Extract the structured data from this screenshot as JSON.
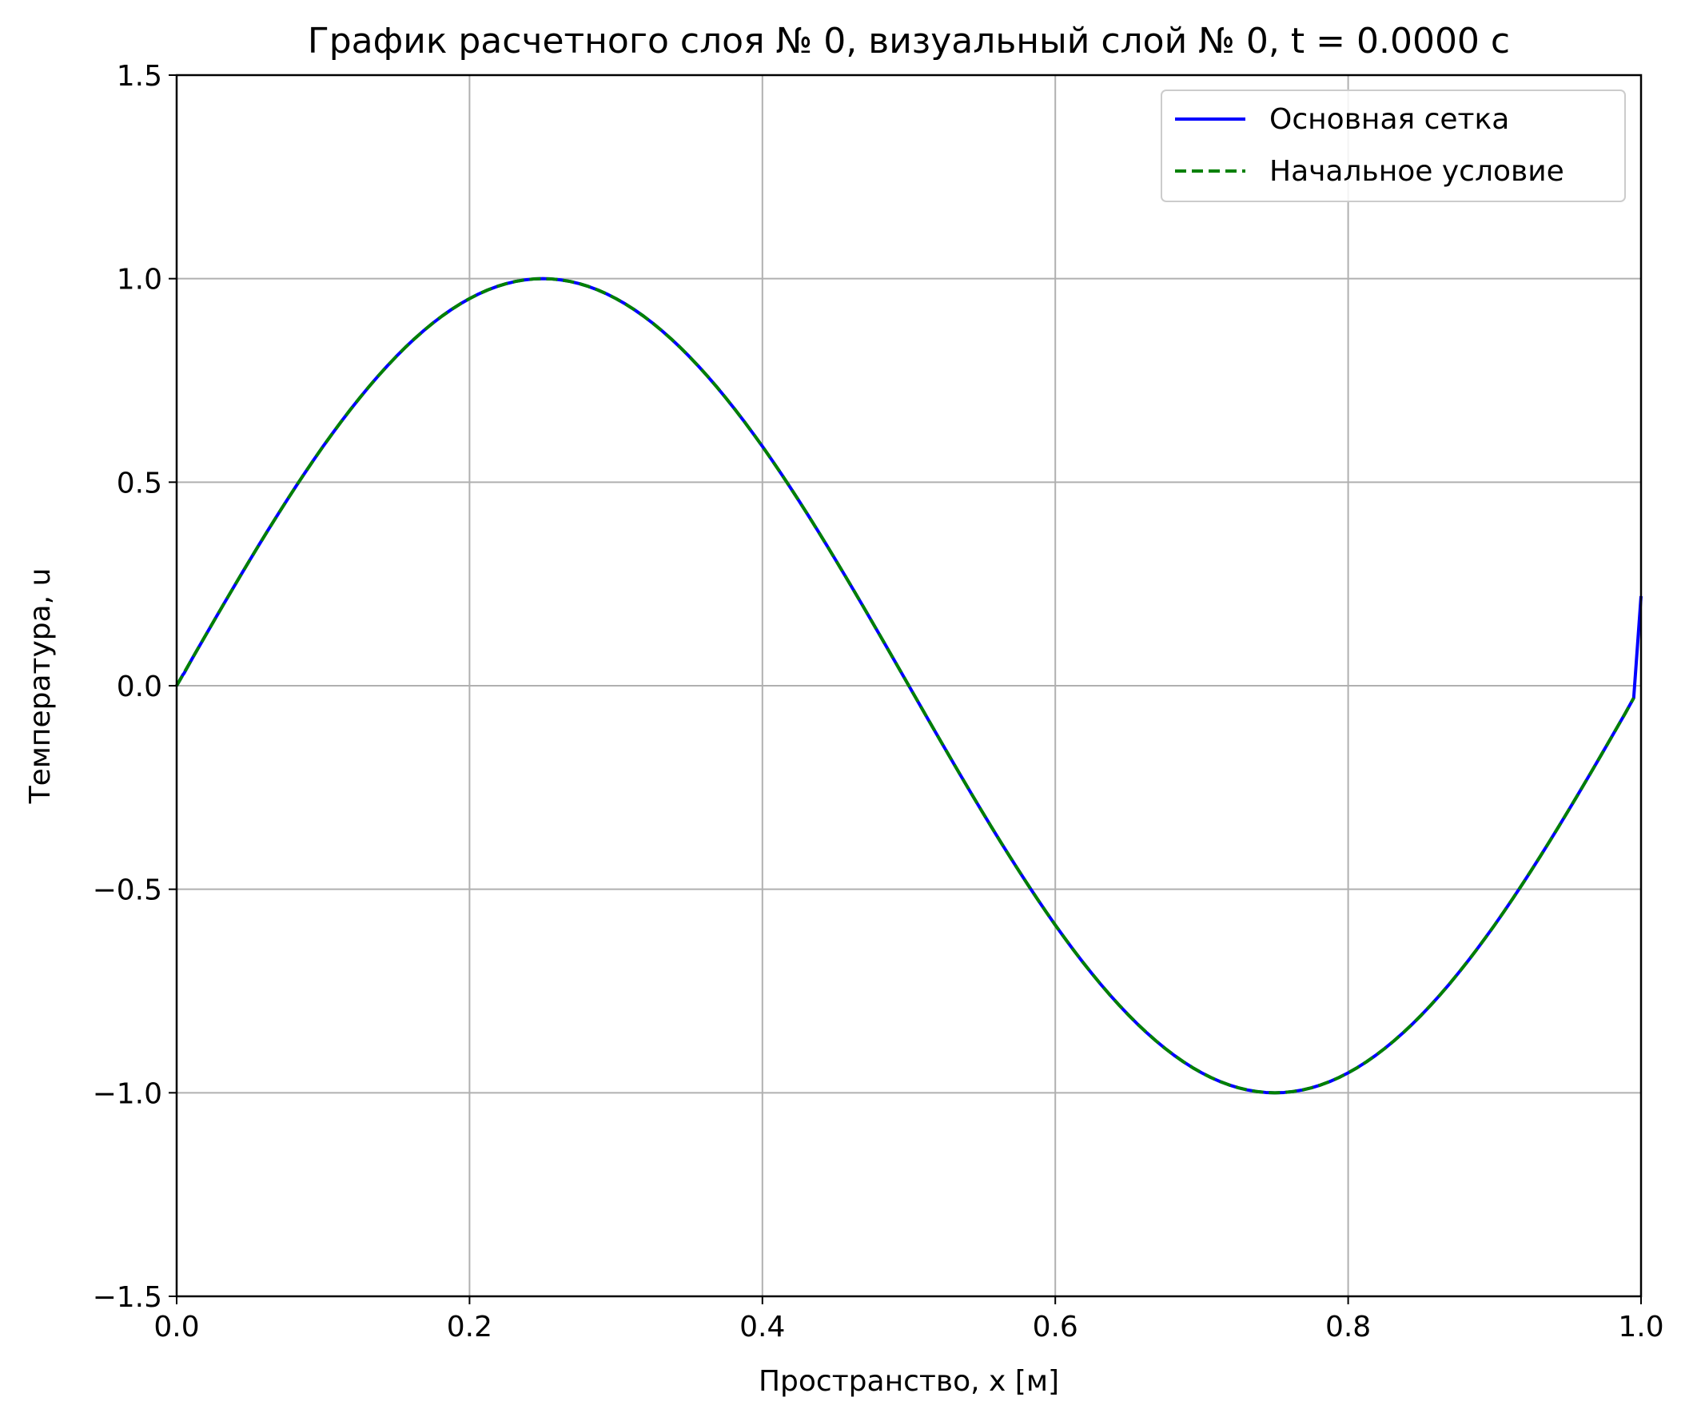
{
  "chart_data": {
    "type": "line",
    "title": "График расчетного слоя № 0, визуальный слой № 0, t = 0.0000 с",
    "xlabel": "Пространство, x [м]",
    "ylabel": "Температура, u",
    "xlim": [
      0.0,
      1.0
    ],
    "ylim": [
      -1.5,
      1.5
    ],
    "xticks": [
      0.0,
      0.2,
      0.4,
      0.6,
      0.8,
      1.0
    ],
    "xtick_labels": [
      "0.0",
      "0.2",
      "0.4",
      "0.6",
      "0.8",
      "1.0"
    ],
    "yticks": [
      -1.5,
      -1.0,
      -0.5,
      0.0,
      0.5,
      1.0,
      1.5
    ],
    "ytick_labels": [
      "−1.5",
      "−1.0",
      "−0.5",
      "0.0",
      "0.5",
      "1.0",
      "1.5"
    ],
    "grid": true,
    "legend_position": "top-right",
    "series": [
      {
        "name": "Основная сетка",
        "color": "#0000ff",
        "style": "solid",
        "x": [
          0.0,
          0.005,
          0.05,
          0.1,
          0.15,
          0.2,
          0.25,
          0.3,
          0.35,
          0.4,
          0.45,
          0.5,
          0.55,
          0.6,
          0.65,
          0.7,
          0.75,
          0.8,
          0.85,
          0.9,
          0.95,
          0.995,
          1.0
        ],
        "y": [
          0.0,
          0.03,
          0.309,
          0.588,
          0.809,
          0.951,
          1.0,
          0.951,
          0.809,
          0.588,
          0.309,
          0.0,
          -0.309,
          -0.588,
          -0.809,
          -0.951,
          -1.0,
          -0.951,
          -0.809,
          -0.588,
          -0.309,
          -0.03,
          0.22
        ]
      },
      {
        "name": "Начальное условие",
        "color": "#008000",
        "style": "dashed",
        "x": [
          0.0,
          0.05,
          0.1,
          0.15,
          0.2,
          0.25,
          0.3,
          0.35,
          0.4,
          0.45,
          0.5,
          0.55,
          0.6,
          0.65,
          0.7,
          0.75,
          0.8,
          0.85,
          0.9,
          0.95,
          0.995
        ],
        "y": [
          0.0,
          0.309,
          0.588,
          0.809,
          0.951,
          1.0,
          0.951,
          0.809,
          0.588,
          0.309,
          0.0,
          -0.309,
          -0.588,
          -0.809,
          -0.951,
          -1.0,
          -0.951,
          -0.809,
          -0.588,
          -0.309,
          -0.03
        ]
      }
    ]
  }
}
